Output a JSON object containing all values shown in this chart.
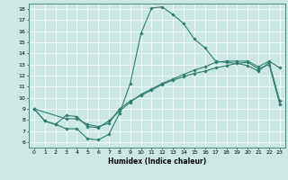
{
  "xlabel": "Humidex (Indice chaleur)",
  "ylabel": "",
  "bg_color": "#cce8e4",
  "line_color": "#2e7d6e",
  "xlim": [
    -0.5,
    23.5
  ],
  "ylim": [
    5.5,
    18.5
  ],
  "xticks": [
    0,
    1,
    2,
    3,
    4,
    5,
    6,
    7,
    8,
    9,
    10,
    11,
    12,
    13,
    14,
    15,
    16,
    17,
    18,
    19,
    20,
    21,
    22,
    23
  ],
  "yticks": [
    6,
    7,
    8,
    9,
    10,
    11,
    12,
    13,
    14,
    15,
    16,
    17,
    18
  ],
  "curve1_x": [
    0,
    1,
    2,
    3,
    4,
    5,
    6,
    7,
    8,
    9,
    10,
    11,
    12,
    13,
    14,
    15,
    16,
    17,
    18,
    19,
    20,
    21,
    22,
    23
  ],
  "curve1_y": [
    9.0,
    7.9,
    7.6,
    7.2,
    7.2,
    6.3,
    6.2,
    6.7,
    8.6,
    11.3,
    15.8,
    18.1,
    18.2,
    17.5,
    16.7,
    15.3,
    14.5,
    13.3,
    13.2,
    13.1,
    12.9,
    12.4,
    13.2,
    9.7
  ],
  "curve2_x": [
    0,
    1,
    2,
    3,
    4,
    5,
    6,
    7,
    8,
    9,
    10,
    11,
    12,
    13,
    14,
    15,
    16,
    17,
    18,
    19,
    20,
    21,
    22,
    23
  ],
  "curve2_y": [
    9.0,
    7.9,
    7.6,
    8.4,
    8.3,
    7.4,
    7.3,
    7.9,
    8.8,
    9.6,
    10.3,
    10.8,
    11.3,
    11.7,
    12.1,
    12.5,
    12.8,
    13.2,
    13.3,
    13.3,
    13.3,
    12.8,
    13.3,
    12.7
  ],
  "curve3_x": [
    0,
    3,
    4,
    5,
    6,
    7,
    8,
    9,
    10,
    11,
    12,
    13,
    14,
    15,
    16,
    17,
    18,
    19,
    20,
    21,
    22,
    23
  ],
  "curve3_y": [
    9.0,
    8.1,
    8.1,
    7.6,
    7.4,
    7.7,
    9.0,
    9.7,
    10.2,
    10.7,
    11.2,
    11.6,
    11.9,
    12.2,
    12.4,
    12.7,
    12.9,
    13.1,
    13.2,
    12.6,
    13.0,
    9.4
  ],
  "xlabel_fontsize": 5.5,
  "tick_fontsize": 4.5,
  "linewidth": 0.8,
  "markersize": 1.8
}
